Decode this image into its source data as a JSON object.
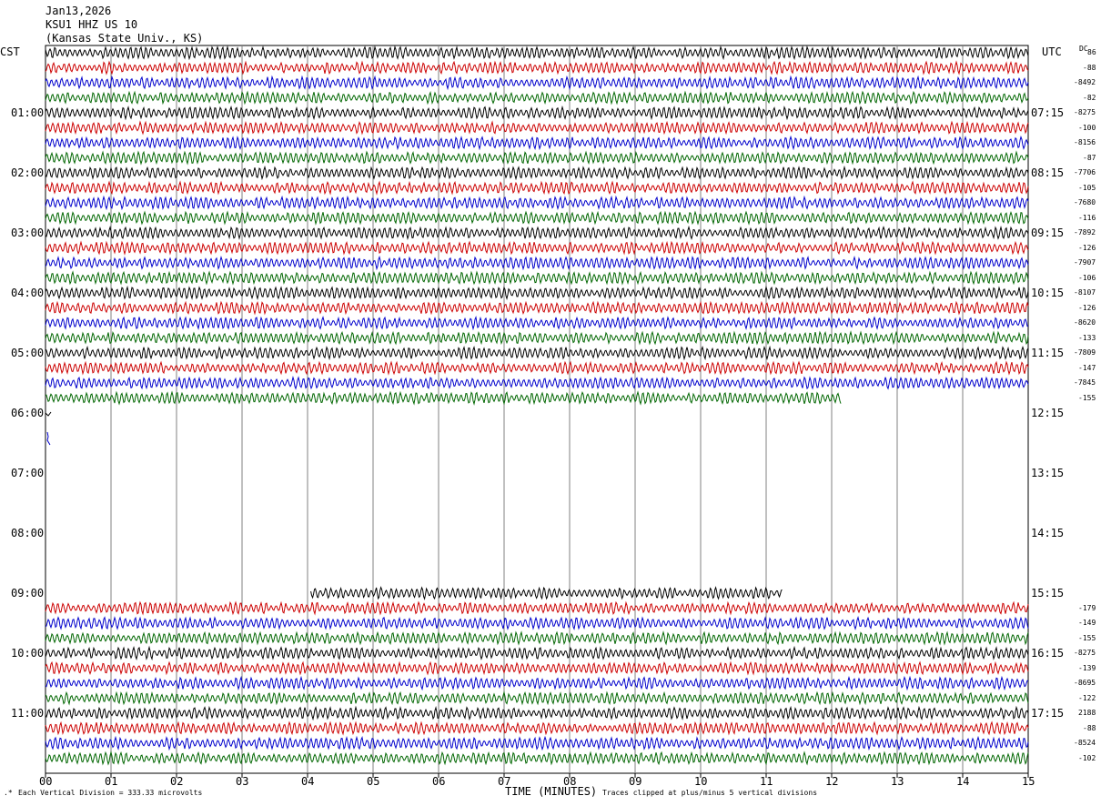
{
  "header": {
    "date": "Jan13,2026",
    "station": "KSU1 HHZ US 10",
    "location": "(Kansas State Univ., KS)"
  },
  "left_zone": "CST",
  "right_zone": "UTC",
  "dc_label": "DC",
  "footer": {
    "scale": "Each Vertical Division =  333.33 microvolts",
    "clip": "Traces clipped at plus/minus 5 vertical divisions",
    "xlabel": "TIME (MINUTES)"
  },
  "colors": {
    "black": "#000000",
    "red": "#cc0000",
    "blue": "#0000cc",
    "green": "#006600",
    "grid": "#808080"
  },
  "chart_data": {
    "type": "line",
    "title": "KSU1 HHZ US 10",
    "xlabel": "TIME (MINUTES)",
    "ylabel": "",
    "xlim": [
      0,
      15
    ],
    "x_ticks": [
      "00",
      "01",
      "02",
      "03",
      "04",
      "05",
      "06",
      "07",
      "08",
      "09",
      "10",
      "11",
      "12",
      "13",
      "14",
      "15"
    ],
    "cst_hour_labels": [
      "01:00",
      "02:00",
      "03:00",
      "04:00",
      "05:00",
      "06:00",
      "07:00",
      "08:00",
      "09:00",
      "10:00",
      "11:00"
    ],
    "utc_hour_labels": [
      "07:15",
      "08:15",
      "09:15",
      "10:15",
      "11:15",
      "12:15",
      "13:15",
      "14:15",
      "15:15",
      "16:15",
      "17:15"
    ],
    "color_cycle": [
      "black",
      "red",
      "blue",
      "green"
    ],
    "trace_status": [
      1,
      1,
      1,
      1,
      1,
      1,
      1,
      1,
      1,
      1,
      1,
      1,
      1,
      1,
      1,
      1,
      1,
      1,
      1,
      1,
      1,
      1,
      1,
      0.81,
      0.02,
      0,
      0,
      0,
      0,
      0,
      0,
      0,
      0,
      0,
      0,
      0,
      0.75,
      1,
      1,
      1,
      1,
      1,
      1,
      1,
      1,
      1,
      1,
      1
    ],
    "trace_start": [
      0,
      0,
      0,
      0,
      0,
      0,
      0,
      0,
      0,
      0,
      0,
      0,
      0,
      0,
      0,
      0,
      0,
      0,
      0,
      0,
      0,
      0,
      0,
      0,
      0,
      0,
      0,
      0,
      0,
      0,
      0,
      0,
      0,
      0,
      0,
      0,
      0.27,
      0,
      0,
      0,
      0,
      0,
      0,
      0,
      0,
      0,
      0,
      0
    ],
    "dc_offsets": [
      "86",
      "-88",
      "-8492",
      "-82",
      "-8275",
      "-100",
      "-8156",
      "-87",
      "-7706",
      "-105",
      "-7680",
      "-116",
      "-7892",
      "-126",
      "-7907",
      "-106",
      "-8107",
      "-126",
      "-8620",
      "-133",
      "-7809",
      "-147",
      "-7845",
      "-155",
      "",
      "",
      "",
      "",
      "",
      "",
      "",
      "",
      "",
      "",
      "",
      "",
      "",
      "-179",
      "-149",
      "-155",
      "-8275",
      "-139",
      "-8695",
      "-122",
      "2188",
      "-88",
      "-8524",
      "-102"
    ]
  }
}
